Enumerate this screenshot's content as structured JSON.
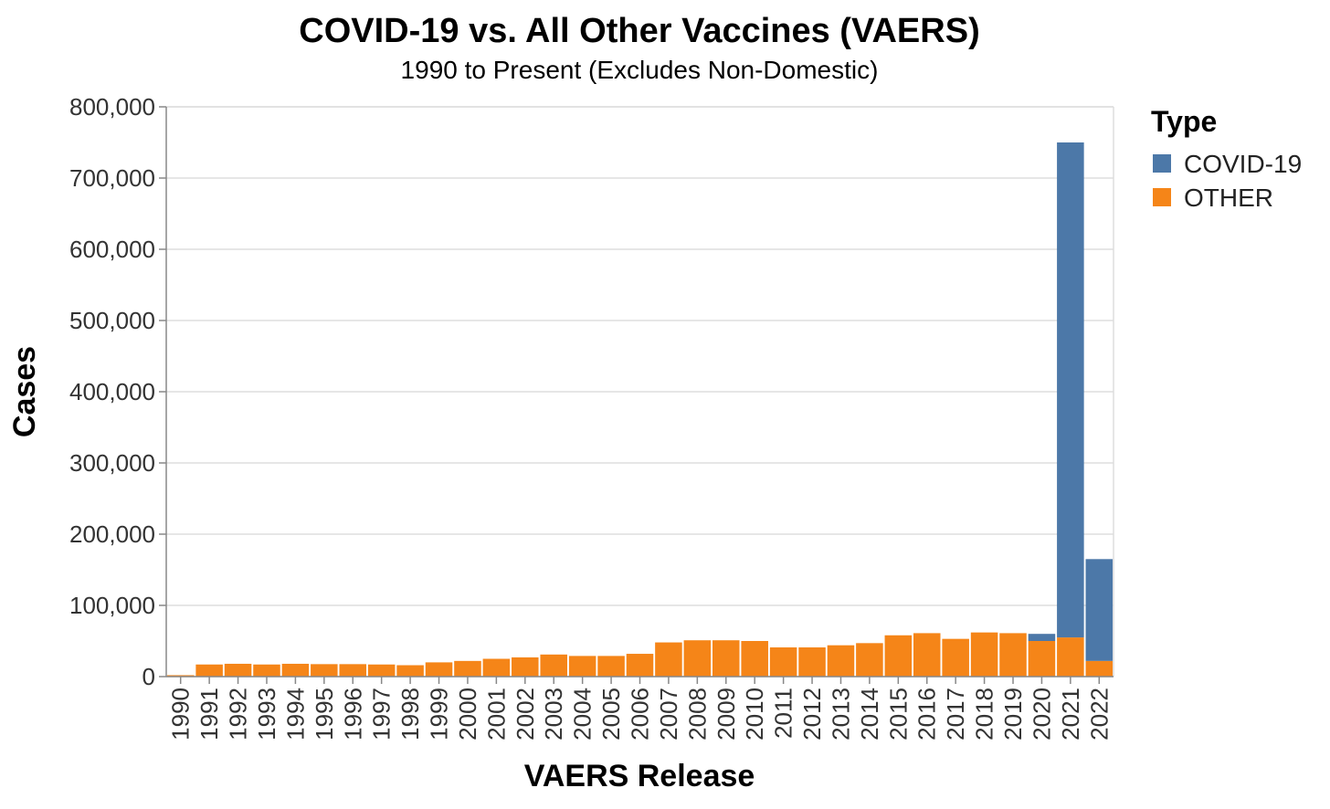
{
  "chart_data": {
    "type": "bar",
    "stacked": true,
    "title": "COVID-19 vs. All Other Vaccines (VAERS)",
    "subtitle": "1990 to Present (Excludes Non-Domestic)",
    "xlabel": "VAERS Release",
    "ylabel": "Cases",
    "ylim": [
      0,
      800000
    ],
    "yticks": [
      0,
      100000,
      200000,
      300000,
      400000,
      500000,
      600000,
      700000,
      800000
    ],
    "ytick_labels": [
      "0",
      "100,000",
      "200,000",
      "300,000",
      "400,000",
      "500,000",
      "600,000",
      "700,000",
      "800,000"
    ],
    "grid": true,
    "legend_title": "Type",
    "legend_position": "top-right",
    "categories": [
      "1990",
      "1991",
      "1992",
      "1993",
      "1994",
      "1995",
      "1996",
      "1997",
      "1998",
      "1999",
      "2000",
      "2001",
      "2002",
      "2003",
      "2004",
      "2005",
      "2006",
      "2007",
      "2008",
      "2009",
      "2010",
      "2011",
      "2012",
      "2013",
      "2014",
      "2015",
      "2016",
      "2017",
      "2018",
      "2019",
      "2020",
      "2021",
      "2022"
    ],
    "series": [
      {
        "name": "OTHER",
        "color": "#f58518",
        "values": [
          2000,
          17000,
          18000,
          17000,
          18000,
          17500,
          17500,
          17000,
          16000,
          20000,
          22000,
          25000,
          27000,
          31000,
          29000,
          29000,
          32000,
          48000,
          51000,
          51000,
          50000,
          41000,
          41000,
          44000,
          47000,
          58000,
          61000,
          53000,
          62000,
          61000,
          50000,
          55000,
          22000
        ]
      },
      {
        "name": "COVID-19",
        "color": "#4c78a8",
        "values": [
          0,
          0,
          0,
          0,
          0,
          0,
          0,
          0,
          0,
          0,
          0,
          0,
          0,
          0,
          0,
          0,
          0,
          0,
          0,
          0,
          0,
          0,
          0,
          0,
          0,
          0,
          0,
          0,
          0,
          0,
          10000,
          695000,
          143000
        ]
      }
    ]
  }
}
